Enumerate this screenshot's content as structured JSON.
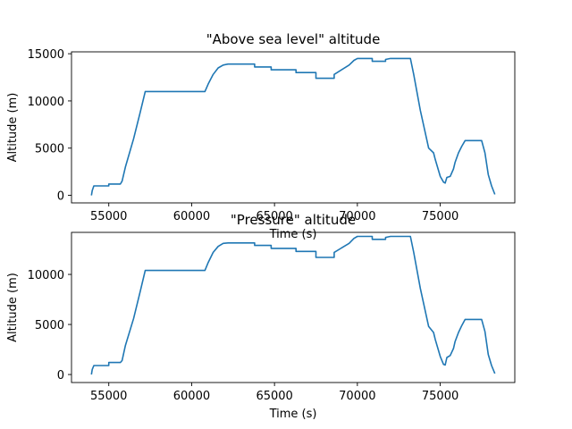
{
  "chart_data": [
    {
      "type": "line",
      "title": "\"Above sea level\" altitude",
      "xlabel": "Time (s)",
      "ylabel": "Altitude (m)",
      "xlim": [
        52750,
        79500
      ],
      "ylim": [
        -800,
        15200
      ],
      "xticks": [
        55000,
        60000,
        65000,
        70000,
        75000
      ],
      "yticks": [
        0,
        5000,
        10000,
        15000
      ],
      "grid": false,
      "series": [
        {
          "name": "",
          "color": "#1f77b4",
          "x": [
            53950,
            54000,
            54100,
            55000,
            55000,
            55700,
            55800,
            56000,
            56500,
            56900,
            57200,
            60800,
            61000,
            61300,
            61600,
            61900,
            62200,
            63800,
            63800,
            64800,
            64800,
            66300,
            66300,
            67500,
            67500,
            68600,
            68600,
            69500,
            69800,
            70000,
            70200,
            70900,
            70900,
            71700,
            71700,
            72000,
            72100,
            73200,
            73400,
            73800,
            74300,
            74600,
            74700,
            75000,
            75200,
            75300,
            75400,
            75600,
            75800,
            75900,
            76100,
            76300,
            76500,
            77500,
            77700,
            77900,
            78100,
            78300
          ],
          "y": [
            0,
            500,
            1000,
            1000,
            1200,
            1200,
            1500,
            3000,
            6000,
            8800,
            11000,
            11000,
            11800,
            12800,
            13500,
            13800,
            13900,
            13900,
            13600,
            13600,
            13300,
            13300,
            13000,
            13000,
            12400,
            12400,
            12800,
            13800,
            14300,
            14500,
            14500,
            14500,
            14200,
            14200,
            14400,
            14500,
            14500,
            14500,
            12800,
            9000,
            5000,
            4500,
            3800,
            2000,
            1400,
            1300,
            1900,
            2000,
            2800,
            3500,
            4500,
            5200,
            5800,
            5800,
            4500,
            2200,
            1000,
            100
          ]
        }
      ]
    },
    {
      "type": "line",
      "title": "\"Pressure\" altitude",
      "xlabel": "Time (s)",
      "ylabel": "Altitude (m)",
      "xlim": [
        52750,
        79500
      ],
      "ylim": [
        -800,
        14200
      ],
      "xticks": [
        55000,
        60000,
        65000,
        70000,
        75000
      ],
      "yticks": [
        0,
        5000,
        10000
      ],
      "grid": false,
      "series": [
        {
          "name": "",
          "color": "#1f77b4",
          "x": [
            53950,
            54000,
            54100,
            55000,
            55000,
            55700,
            55800,
            56000,
            56500,
            56900,
            57200,
            60800,
            61000,
            61300,
            61600,
            61900,
            62200,
            63800,
            63800,
            64800,
            64800,
            66300,
            66300,
            67500,
            67500,
            68600,
            68600,
            69500,
            69800,
            70000,
            70200,
            70900,
            70900,
            71700,
            71700,
            72000,
            72100,
            73200,
            73400,
            73800,
            74300,
            74600,
            74700,
            75000,
            75200,
            75300,
            75400,
            75600,
            75800,
            75900,
            76100,
            76300,
            76500,
            77500,
            77700,
            77900,
            78100,
            78300
          ],
          "y": [
            0,
            500,
            900,
            900,
            1200,
            1200,
            1400,
            2900,
            5600,
            8300,
            10400,
            10400,
            11200,
            12200,
            12800,
            13100,
            13150,
            13150,
            12900,
            12900,
            12600,
            12600,
            12300,
            12300,
            11700,
            11700,
            12200,
            13100,
            13600,
            13800,
            13800,
            13800,
            13500,
            13500,
            13700,
            13800,
            13800,
            13800,
            12200,
            8600,
            4800,
            4200,
            3500,
            1800,
            1000,
            950,
            1700,
            1900,
            2600,
            3300,
            4200,
            4900,
            5500,
            5500,
            4300,
            2000,
            900,
            100
          ]
        }
      ]
    }
  ]
}
